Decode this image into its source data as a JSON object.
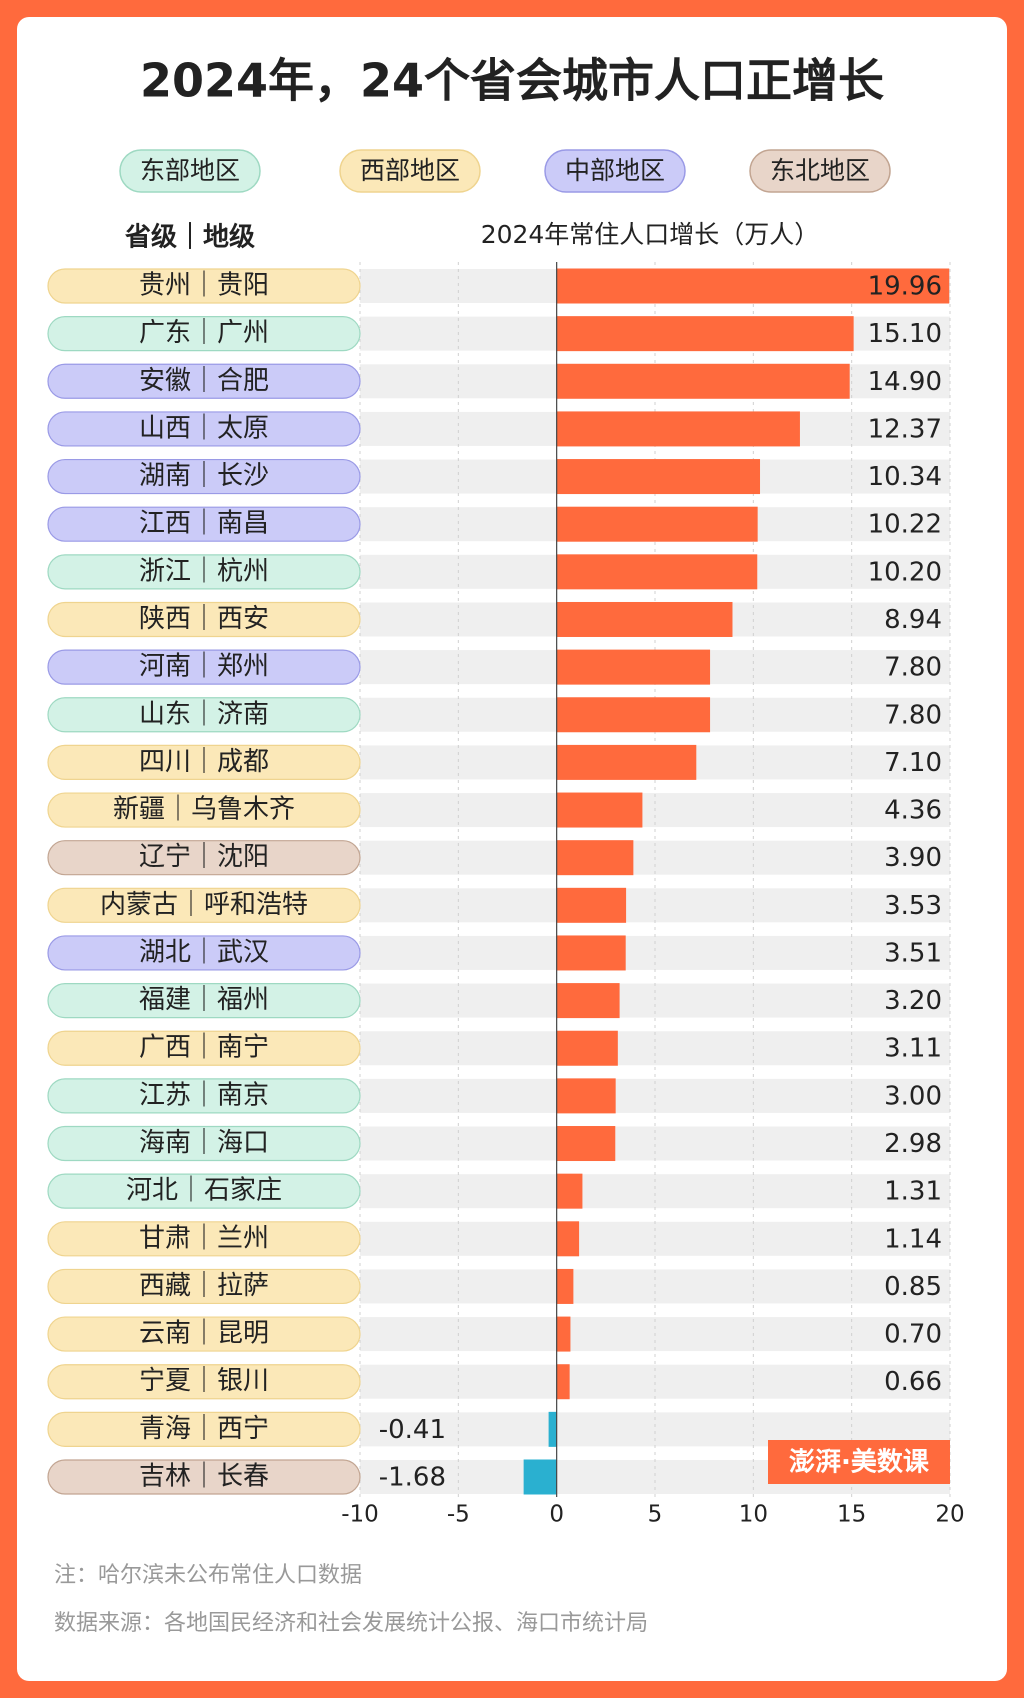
{
  "chart_data": {
    "type": "bar",
    "orientation": "horizontal",
    "title": "2024年，24个省会城市人口正增长",
    "category_header": "省级｜地级",
    "axis_title": "2024年常住人口增长（万人）",
    "legend": [
      {
        "name": "东部地区",
        "color": "#d3f2e6",
        "border": "#9ed9c2"
      },
      {
        "name": "西部地区",
        "color": "#fbe8b8",
        "border": "#efd48f"
      },
      {
        "name": "中部地区",
        "color": "#cbcbf8",
        "border": "#9a9ae6"
      },
      {
        "name": "东北地区",
        "color": "#e8d5c9",
        "border": "#c2a592"
      }
    ],
    "categories": [
      "贵州｜贵阳",
      "广东｜广州",
      "安徽｜合肥",
      "山西｜太原",
      "湖南｜长沙",
      "江西｜南昌",
      "浙江｜杭州",
      "陕西｜西安",
      "河南｜郑州",
      "山东｜济南",
      "四川｜成都",
      "新疆｜乌鲁木齐",
      "辽宁｜沈阳",
      "内蒙古｜呼和浩特",
      "湖北｜武汉",
      "福建｜福州",
      "广西｜南宁",
      "江苏｜南京",
      "海南｜海口",
      "河北｜石家庄",
      "甘肃｜兰州",
      "西藏｜拉萨",
      "云南｜昆明",
      "宁夏｜银川",
      "青海｜西宁",
      "吉林｜长春"
    ],
    "category_region": [
      1,
      0,
      2,
      2,
      2,
      2,
      0,
      1,
      2,
      0,
      1,
      1,
      3,
      1,
      2,
      0,
      1,
      0,
      0,
      0,
      1,
      1,
      1,
      1,
      1,
      3
    ],
    "values": [
      19.96,
      15.1,
      14.9,
      12.37,
      10.34,
      10.22,
      10.2,
      8.94,
      7.8,
      7.8,
      7.1,
      4.36,
      3.9,
      3.53,
      3.51,
      3.2,
      3.11,
      3.0,
      2.98,
      1.31,
      1.14,
      0.85,
      0.7,
      0.66,
      -0.41,
      -1.68
    ],
    "value_labels": [
      "19.96",
      "15.10",
      "14.90",
      "12.37",
      "10.34",
      "10.22",
      "10.20",
      "8.94",
      "7.80",
      "7.80",
      "7.10",
      "4.36",
      "3.90",
      "3.53",
      "3.51",
      "3.20",
      "3.11",
      "3.00",
      "2.98",
      "1.31",
      "1.14",
      "0.85",
      "0.70",
      "0.66",
      "-0.41",
      "-1.68"
    ],
    "positive_color": "#ff6a3d",
    "negative_color": "#2ab0d0",
    "xlim": [
      -10,
      20
    ],
    "xticks": [
      -10,
      -5,
      0,
      5,
      10,
      15,
      20
    ],
    "grid": true,
    "watermark": "澎湃·美数课",
    "notes": [
      "注：哈尔滨未公布常住人口数据",
      "数据来源：各地国民经济和社会发展统计公报、海口市统计局"
    ]
  }
}
